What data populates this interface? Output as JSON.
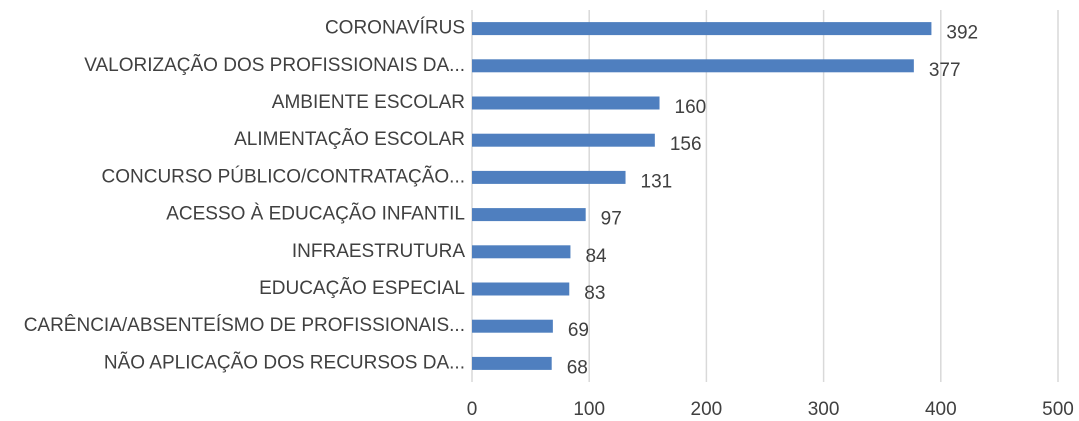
{
  "chart_data": {
    "type": "hbar",
    "categories": [
      "CORONAVÍRUS",
      "VALORIZAÇÃO DOS PROFISSIONAIS DA...",
      "AMBIENTE ESCOLAR",
      "ALIMENTAÇÃO ESCOLAR",
      "CONCURSO PÚBLICO/CONTRATAÇÃO...",
      "ACESSO À EDUCAÇÃO INFANTIL",
      "INFRAESTRUTURA",
      "EDUCAÇÃO ESPECIAL",
      "CARÊNCIA/ABSENTEÍSMO DE PROFISSIONAIS...",
      "NÃO APLICAÇÃO DOS RECURSOS DA..."
    ],
    "values": [
      392,
      377,
      160,
      156,
      131,
      97,
      84,
      83,
      69,
      68
    ],
    "color": "#4f7fbf",
    "xlim": [
      0,
      500
    ],
    "xticks": [
      0,
      100,
      200,
      300,
      400,
      500
    ],
    "grid": true
  }
}
